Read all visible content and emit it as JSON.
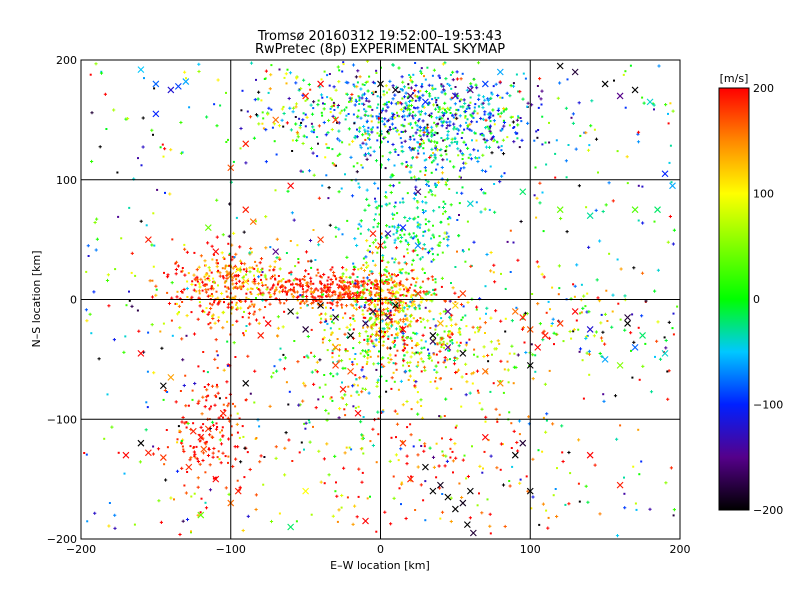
{
  "chart_data": {
    "type": "scatter",
    "title": "Tromsø 20160312 19:52:00–19:53:43",
    "subtitle": "RwPretec (8p) EXPERIMENTAL SKYMAP",
    "xlabel": "E–W location [km]",
    "ylabel": "N–S location [km]",
    "xlim": [
      -200,
      200
    ],
    "ylim": [
      -200,
      200
    ],
    "xticks": [
      -200,
      -100,
      0,
      100,
      200
    ],
    "yticks": [
      -200,
      -100,
      0,
      100,
      200
    ],
    "x_tick_labels": [
      "−200",
      "−100",
      "0",
      "100",
      "200"
    ],
    "y_tick_labels": [
      "−200",
      "−100",
      "0",
      "100",
      "200"
    ],
    "grid": true,
    "colorbar": {
      "label": "[m/s]",
      "range": [
        -200,
        200
      ],
      "ticks": [
        200,
        100,
        0,
        -100,
        -200
      ],
      "tick_labels": [
        "200",
        "100",
        "0",
        "−100",
        "−200"
      ],
      "colormap": [
        {
          "v": -200,
          "color": "#000000"
        },
        {
          "v": -150,
          "color": "#55008a"
        },
        {
          "v": -100,
          "color": "#0020ff"
        },
        {
          "v": -50,
          "color": "#00c8ff"
        },
        {
          "v": 0,
          "color": "#00ff00"
        },
        {
          "v": 100,
          "color": "#ffff00"
        },
        {
          "v": 150,
          "color": "#ff8800"
        },
        {
          "v": 200,
          "color": "#ff0000"
        }
      ]
    },
    "series": [
      {
        "marker": "x",
        "points": [
          [
            -170,
            -130,
            200
          ],
          [
            -155,
            -128,
            190
          ],
          [
            -145,
            -132,
            180
          ],
          [
            -160,
            -120,
            -200
          ],
          [
            -125,
            -110,
            190
          ],
          [
            -120,
            -115,
            195
          ],
          [
            -115,
            -108,
            180
          ],
          [
            -118,
            -125,
            170
          ],
          [
            -128,
            -140,
            185
          ],
          [
            -110,
            -150,
            200
          ],
          [
            -95,
            -160,
            190
          ],
          [
            -90,
            -70,
            -200
          ],
          [
            -105,
            -95,
            190
          ],
          [
            -140,
            -65,
            140
          ],
          [
            -145,
            -72,
            -200
          ],
          [
            -160,
            -45,
            200
          ],
          [
            -155,
            50,
            190
          ],
          [
            -150,
            180,
            -80
          ],
          [
            -140,
            175,
            -120
          ],
          [
            -135,
            178,
            -90
          ],
          [
            -130,
            182,
            -60
          ],
          [
            -160,
            192,
            -50
          ],
          [
            -150,
            155,
            -100
          ],
          [
            -115,
            60,
            40
          ],
          [
            -110,
            40,
            200
          ],
          [
            -100,
            20,
            150
          ],
          [
            -95,
            25,
            100
          ],
          [
            -90,
            15,
            110
          ],
          [
            -85,
            65,
            160
          ],
          [
            -70,
            40,
            -150
          ],
          [
            -60,
            -10,
            -200
          ],
          [
            -50,
            -25,
            -180
          ],
          [
            -40,
            -5,
            -200
          ],
          [
            -30,
            -15,
            -190
          ],
          [
            -20,
            -30,
            -200
          ],
          [
            -10,
            -20,
            -170
          ],
          [
            -5,
            -10,
            -180
          ],
          [
            5,
            -15,
            -160
          ],
          [
            10,
            -5,
            -200
          ],
          [
            15,
            -25,
            200
          ],
          [
            25,
            5,
            180
          ],
          [
            35,
            -35,
            -170
          ],
          [
            45,
            -40,
            -150
          ],
          [
            55,
            -45,
            -200
          ],
          [
            70,
            -60,
            160
          ],
          [
            80,
            -70,
            150
          ],
          [
            100,
            -55,
            -200
          ],
          [
            110,
            -30,
            190
          ],
          [
            120,
            -20,
            180
          ],
          [
            130,
            -10,
            200
          ],
          [
            140,
            -25,
            -120
          ],
          [
            150,
            -50,
            -60
          ],
          [
            160,
            -55,
            50
          ],
          [
            170,
            -40,
            -80
          ],
          [
            175,
            -30,
            -20
          ],
          [
            190,
            -45,
            -40
          ],
          [
            165,
            -20,
            -200
          ],
          [
            165,
            -15,
            -180
          ],
          [
            160,
            -155,
            190
          ],
          [
            140,
            -130,
            200
          ],
          [
            100,
            -160,
            -200
          ],
          [
            95,
            -120,
            -180
          ],
          [
            90,
            -130,
            -200
          ],
          [
            70,
            -115,
            200
          ],
          [
            60,
            -160,
            -200
          ],
          [
            55,
            -170,
            -190
          ],
          [
            50,
            -175,
            -200
          ],
          [
            58,
            -188,
            -200
          ],
          [
            62,
            -195,
            -180
          ],
          [
            45,
            -165,
            -200
          ],
          [
            40,
            -155,
            -190
          ],
          [
            35,
            -160,
            -200
          ],
          [
            30,
            -140,
            -200
          ],
          [
            20,
            -150,
            190
          ],
          [
            15,
            -120,
            180
          ],
          [
            -10,
            -185,
            200
          ],
          [
            -50,
            -160,
            100
          ],
          [
            -60,
            -190,
            -20
          ],
          [
            -100,
            -170,
            160
          ],
          [
            -120,
            -180,
            40
          ],
          [
            -20,
            -60,
            170
          ],
          [
            -25,
            -75,
            190
          ],
          [
            -15,
            -95,
            200
          ],
          [
            0,
            180,
            -200
          ],
          [
            10,
            175,
            -190
          ],
          [
            20,
            170,
            -160
          ],
          [
            30,
            165,
            -100
          ],
          [
            50,
            170,
            -130
          ],
          [
            60,
            175,
            -150
          ],
          [
            70,
            180,
            -90
          ],
          [
            80,
            190,
            -60
          ],
          [
            120,
            195,
            -200
          ],
          [
            130,
            190,
            -180
          ],
          [
            150,
            180,
            -200
          ],
          [
            160,
            170,
            -150
          ],
          [
            170,
            175,
            -200
          ],
          [
            180,
            165,
            -40
          ],
          [
            190,
            105,
            -100
          ],
          [
            195,
            95,
            -60
          ],
          [
            185,
            75,
            -20
          ],
          [
            170,
            75,
            30
          ],
          [
            140,
            70,
            -30
          ],
          [
            120,
            75,
            40
          ],
          [
            95,
            90,
            -20
          ],
          [
            60,
            80,
            -40
          ],
          [
            25,
            90,
            -160
          ],
          [
            -30,
            150,
            180
          ],
          [
            -40,
            180,
            200
          ],
          [
            -50,
            170,
            190
          ],
          [
            -70,
            150,
            160
          ],
          [
            -90,
            130,
            190
          ],
          [
            -100,
            110,
            170
          ],
          [
            -90,
            75,
            190
          ],
          [
            -60,
            95,
            200
          ],
          [
            -40,
            50,
            180
          ],
          [
            -5,
            55,
            190
          ],
          [
            0,
            45,
            190
          ],
          [
            5,
            55,
            -130
          ],
          [
            15,
            60,
            -100
          ],
          [
            25,
            45,
            -70
          ],
          [
            35,
            -30,
            -200
          ],
          [
            40,
            -20,
            130
          ],
          [
            45,
            -10,
            -150
          ],
          [
            50,
            -5,
            120
          ],
          [
            55,
            5,
            180
          ],
          [
            90,
            -10,
            160
          ],
          [
            95,
            -15,
            190
          ],
          [
            100,
            -25,
            170
          ],
          [
            105,
            -40,
            200
          ],
          [
            -75,
            -20,
            200
          ],
          [
            -80,
            -30,
            190
          ],
          [
            -30,
            -40,
            150
          ],
          [
            -30,
            -55,
            180
          ]
        ]
      },
      {
        "marker": "dot",
        "generated": true
      }
    ]
  }
}
